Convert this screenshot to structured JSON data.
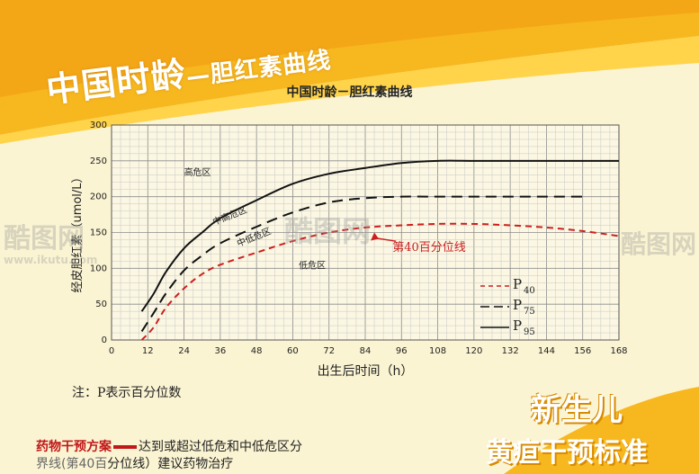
{
  "banner": {
    "title": "中国时龄",
    "subtitle": "—胆红素曲线"
  },
  "chart_data": {
    "type": "line",
    "title": "中国时龄－胆红素曲线",
    "xlabel": "出生后时间（h）",
    "ylabel": "经皮胆红素（umol/L）",
    "xlim": [
      0,
      168
    ],
    "ylim": [
      0,
      300
    ],
    "x_ticks": [
      0,
      12,
      24,
      36,
      48,
      60,
      72,
      84,
      96,
      108,
      120,
      132,
      144,
      156,
      168
    ],
    "y_ticks": [
      0,
      50,
      100,
      150,
      200,
      250,
      300
    ],
    "grid": true,
    "series": [
      {
        "name": "P95",
        "style": "solid",
        "color": "#111111",
        "x": [
          10,
          14,
          18,
          24,
          30,
          36,
          48,
          60,
          72,
          84,
          96,
          108,
          120,
          132,
          144,
          156,
          168
        ],
        "y": [
          40,
          65,
          95,
          128,
          150,
          170,
          195,
          218,
          232,
          240,
          247,
          250,
          250,
          250,
          250,
          250,
          250
        ]
      },
      {
        "name": "P75",
        "style": "dashed",
        "color": "#111111",
        "x": [
          10,
          14,
          18,
          24,
          30,
          36,
          48,
          60,
          72,
          84,
          96,
          108,
          120,
          132,
          144,
          156
        ],
        "y": [
          12,
          38,
          65,
          97,
          118,
          135,
          158,
          178,
          192,
          198,
          200,
          200,
          200,
          200,
          200,
          200
        ]
      },
      {
        "name": "P40",
        "style": "dashed",
        "color": "#cc2020",
        "x": [
          10,
          14,
          18,
          24,
          30,
          36,
          48,
          60,
          72,
          84,
          96,
          108,
          120,
          132,
          144,
          156,
          168
        ],
        "y": [
          0,
          18,
          45,
          72,
          92,
          105,
          122,
          138,
          150,
          157,
          160,
          162,
          162,
          160,
          157,
          152,
          145
        ]
      }
    ],
    "zone_labels": [
      {
        "text": "高危区",
        "x": 24,
        "y": 230,
        "rotate": 0
      },
      {
        "text": "中高危区",
        "x": 34,
        "y": 160,
        "rotate": -22
      },
      {
        "text": "中低危区",
        "x": 42,
        "y": 130,
        "rotate": -22
      },
      {
        "text": "低危区",
        "x": 62,
        "y": 100,
        "rotate": 0
      }
    ],
    "annotation": {
      "text": "第40百分位线",
      "x": 93,
      "y": 124,
      "arrow_to": [
        87,
        150
      ]
    },
    "legend": {
      "position": "bottom-right",
      "labels": [
        {
          "main": "P",
          "sub": "40",
          "style": "dashed",
          "color": "#cc2020"
        },
        {
          "main": "P",
          "sub": "75",
          "style": "dashed",
          "color": "#111111"
        },
        {
          "main": "P",
          "sub": "95",
          "style": "solid",
          "color": "#111111"
        }
      ]
    }
  },
  "note": "注：P表示百分位数",
  "bottom_text": {
    "line1_prefix": "药物干预方案",
    "line1_rest": "达到或超过低危和中低危区分",
    "line2_prefix": "界线(第40百",
    "line2_rest": "分位线）建议药物治疗"
  },
  "badge": {
    "line1": "新生儿",
    "line2": "黄疸干预标准"
  },
  "watermark": {
    "brand": "酷图网",
    "url": "www.ikutu.com"
  },
  "colors": {
    "banner_yellow": "#f7b81f",
    "banner_light": "#ffd34a",
    "red": "#cc2020",
    "background": "#fbf4d3"
  }
}
